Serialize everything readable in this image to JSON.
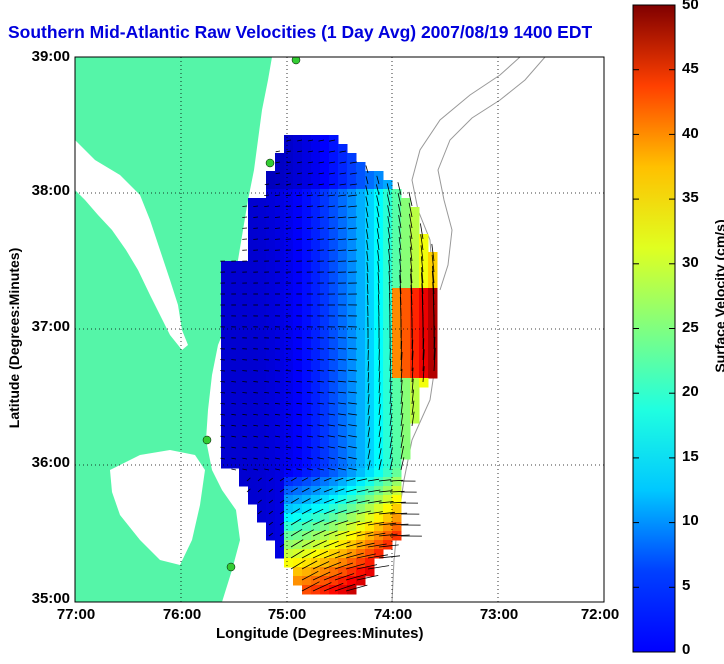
{
  "title": "Southern Mid-Atlantic Raw Velocities (1 Day Avg) 2007/08/19 1400 EDT",
  "map": {
    "xlabel": "Longitude (Degrees:Minutes)",
    "ylabel": "Latitude (Degrees:Minutes)",
    "xticks": [
      "77:00",
      "76:00",
      "75:00",
      "74:00",
      "73:00",
      "72:00"
    ],
    "yticks": [
      "39:00",
      "38:00",
      "37:00",
      "36:00",
      "35:00"
    ],
    "colors": {
      "land": "#55f5a8",
      "water": "#ffffff",
      "stations": "#33cc33",
      "vectors": "#000000",
      "bathymetry": "#999999"
    },
    "stations_count": 4
  },
  "colorbar": {
    "label": "Surface Velocity (cm/s)",
    "ticks": [
      "50",
      "45",
      "40",
      "35",
      "30",
      "25",
      "20",
      "15",
      "10",
      "5",
      "0"
    ],
    "min": 0,
    "max": 50,
    "colormap": "jet"
  }
}
